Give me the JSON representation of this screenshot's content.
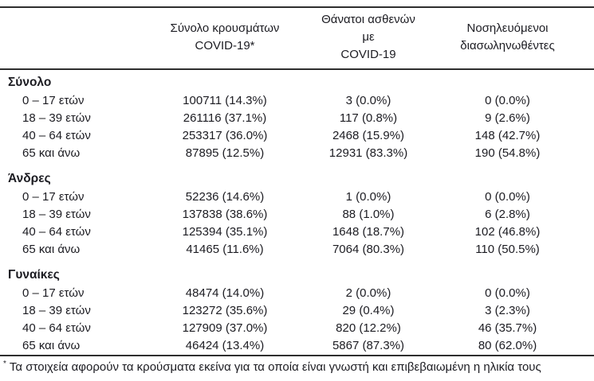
{
  "table": {
    "headers": [
      {
        "line1": "Σύνολο κρουσμάτων",
        "line2": "COVID-19*"
      },
      {
        "line1": "Θάνατοι ασθενών με",
        "line2": "COVID-19"
      },
      {
        "line1": "Νοσηλευόμενοι",
        "line2": "διασωληνωθέντες"
      }
    ],
    "sections": [
      {
        "title": "Σύνολο",
        "rows": [
          {
            "label": "0 – 17 ετών",
            "cases": "100711 (14.3%)",
            "deaths": "3 (0.0%)",
            "intubated": "0 (0.0%)"
          },
          {
            "label": "18 – 39 ετών",
            "cases": "261116 (37.1%)",
            "deaths": "117 (0.8%)",
            "intubated": "9 (2.6%)"
          },
          {
            "label": "40 – 64 ετών",
            "cases": "253317 (36.0%)",
            "deaths": "2468 (15.9%)",
            "intubated": "148 (42.7%)"
          },
          {
            "label": "65 και άνω",
            "cases": "87895 (12.5%)",
            "deaths": "12931 (83.3%)",
            "intubated": "190 (54.8%)"
          }
        ]
      },
      {
        "title": "Άνδρες",
        "rows": [
          {
            "label": "0 – 17 ετών",
            "cases": "52236 (14.6%)",
            "deaths": "1 (0.0%)",
            "intubated": "0 (0.0%)"
          },
          {
            "label": "18 – 39 ετών",
            "cases": "137838 (38.6%)",
            "deaths": "88 (1.0%)",
            "intubated": "6 (2.8%)"
          },
          {
            "label": "40 – 64 ετών",
            "cases": "125394 (35.1%)",
            "deaths": "1648 (18.7%)",
            "intubated": "102 (46.8%)"
          },
          {
            "label": "65 και άνω",
            "cases": "41465 (11.6%)",
            "deaths": "7064 (80.3%)",
            "intubated": "110 (50.5%)"
          }
        ]
      },
      {
        "title": "Γυναίκες",
        "rows": [
          {
            "label": "0 – 17 ετών",
            "cases": "48474 (14.0%)",
            "deaths": "2 (0.0%)",
            "intubated": "0 (0.0%)"
          },
          {
            "label": "18 – 39 ετών",
            "cases": "123272 (35.6%)",
            "deaths": "29 (0.4%)",
            "intubated": "3 (2.3%)"
          },
          {
            "label": "40 – 64 ετών",
            "cases": "127909 (37.0%)",
            "deaths": "820 (12.2%)",
            "intubated": "46 (35.7%)"
          },
          {
            "label": "65 και άνω",
            "cases": "46424 (13.4%)",
            "deaths": "5867 (87.3%)",
            "intubated": "80 (62.0%)"
          }
        ]
      }
    ],
    "footnote": {
      "marker": "*",
      "text": "Τα στοιχεία αφορούν τα κρούσματα εκείνα για τα οποία είναι γνωστή και επιβεβαιωμένη η ηλικία τους"
    }
  },
  "colors": {
    "text": "#1c1c22",
    "rule": "#2e2e2e",
    "background": "#ffffff"
  }
}
